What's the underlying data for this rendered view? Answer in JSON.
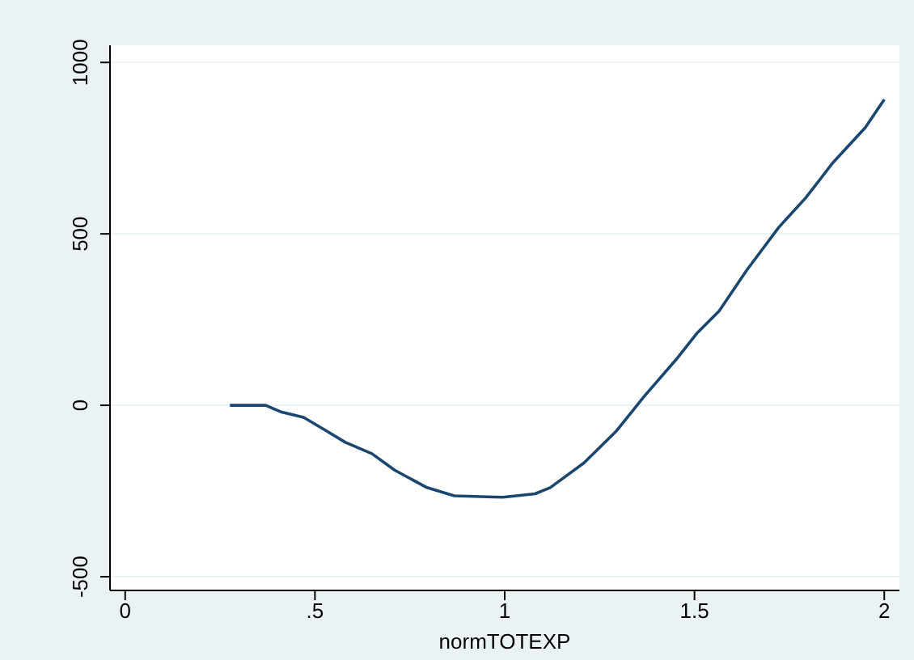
{
  "chart_data": {
    "type": "line",
    "xlabel": "normTOTEXP",
    "x": [
      0.276,
      0.37,
      0.41,
      0.47,
      0.525,
      0.58,
      0.65,
      0.71,
      0.795,
      0.867,
      0.953,
      0.995,
      1.08,
      1.12,
      1.209,
      1.295,
      1.366,
      1.452,
      1.508,
      1.565,
      1.637,
      1.722,
      1.793,
      1.865,
      1.95,
      2.0
    ],
    "series": [
      {
        "color": "#1a476f",
        "values": [
          0,
          0,
          -19,
          -35,
          -71,
          -108,
          -141,
          -189,
          -240,
          -264,
          -267,
          -268,
          -258,
          -240,
          -168,
          -74,
          24,
          134,
          212,
          275,
          393,
          519,
          605,
          708,
          810,
          892
        ]
      }
    ],
    "xlim": [
      -0.04,
      2.04
    ],
    "xticks": [
      0,
      {
        "value": 0.5,
        "label": ".5"
      },
      1,
      1.5,
      2
    ],
    "ylim": [
      -540,
      1050
    ],
    "yticks": [
      -500,
      0,
      500,
      1000
    ],
    "grid": "y",
    "marker": "none",
    "line_style": "solid"
  }
}
